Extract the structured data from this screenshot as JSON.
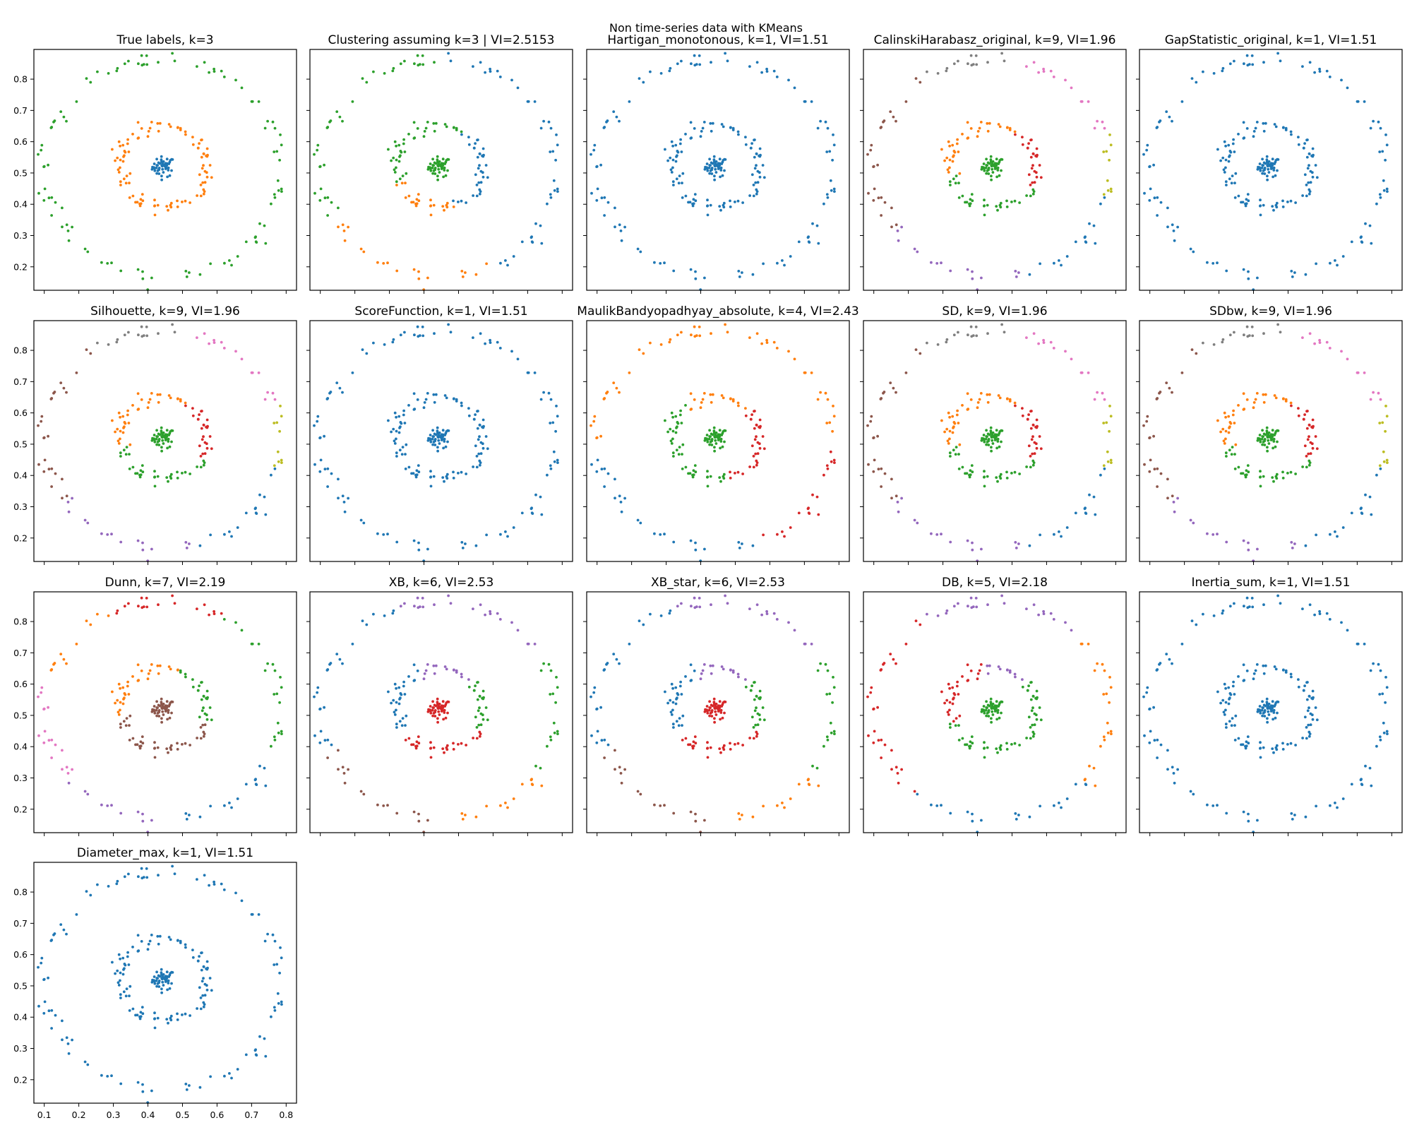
{
  "suptitle": "Non time-series data with KMeans",
  "palette": {
    "c0": "#1f77b4",
    "c1": "#ff7f0e",
    "c2": "#2ca02c",
    "c3": "#d62728",
    "c4": "#9467bd",
    "c5": "#8c564b",
    "c6": "#e377c2",
    "c7": "#7f7f7f",
    "c8": "#bcbd22"
  },
  "chart_data": {
    "type": "scatter",
    "description_of_data": "Three concentric groups: a dense blob near (0.445, 0.52), a ring of radius ~0.13 and an outer ring of radius ~0.34 centred on the same point.",
    "groups": [
      {
        "id": "center",
        "center": [
          0.445,
          0.52
        ],
        "spread": 0.016,
        "n": 50
      },
      {
        "id": "inner-ring",
        "center": [
          0.445,
          0.52
        ],
        "radius": 0.128,
        "n": 100
      },
      {
        "id": "outer-ring",
        "center": [
          0.445,
          0.515
        ],
        "radius": 0.345,
        "n": 100
      }
    ],
    "xlim": [
      0.07,
      0.83
    ],
    "ylim": [
      0.125,
      0.895
    ],
    "xticks": [
      "0.1",
      "0.2",
      "0.3",
      "0.4",
      "0.5",
      "0.6",
      "0.7",
      "0.8"
    ],
    "yticks": [
      "0.2",
      "0.3",
      "0.4",
      "0.5",
      "0.6",
      "0.7",
      "0.8"
    ],
    "panels": [
      {
        "title": "True labels, k=3",
        "labeling": "true"
      },
      {
        "title": "Clustering assuming k=3 | VI=2.5153",
        "labeling": "k3"
      },
      {
        "title": "Hartigan_monotonous, k=1, VI=1.51",
        "labeling": "k1"
      },
      {
        "title": "CalinskiHarabasz_original, k=9, VI=1.96",
        "labeling": "k9"
      },
      {
        "title": "GapStatistic_original, k=1, VI=1.51",
        "labeling": "k1"
      },
      {
        "title": "Silhouette, k=9, VI=1.96",
        "labeling": "k9"
      },
      {
        "title": "ScoreFunction, k=1, VI=1.51",
        "labeling": "k1"
      },
      {
        "title": "MaulikBandyopadhyay_absolute, k=4, VI=2.43",
        "labeling": "k4"
      },
      {
        "title": "SD, k=9, VI=1.96",
        "labeling": "k9"
      },
      {
        "title": "SDbw, k=9, VI=1.96",
        "labeling": "k9"
      },
      {
        "title": "Dunn, k=7, VI=2.19",
        "labeling": "k7"
      },
      {
        "title": "XB, k=6, VI=2.53",
        "labeling": "k6"
      },
      {
        "title": "XB_star, k=6, VI=2.53",
        "labeling": "k6"
      },
      {
        "title": "DB, k=5, VI=2.18",
        "labeling": "k5"
      },
      {
        "title": "Inertia_sum, k=1, VI=1.51",
        "labeling": "k1"
      },
      {
        "title": "Diameter_max, k=1, VI=1.51",
        "labeling": "k1"
      }
    ],
    "legend": "none",
    "grid": false
  }
}
